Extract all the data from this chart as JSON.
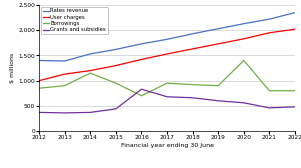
{
  "years": [
    2012,
    2013,
    2014,
    2015,
    2016,
    2017,
    2018,
    2019,
    2020,
    2021,
    2022
  ],
  "rates_revenue": [
    1400,
    1390,
    1530,
    1620,
    1730,
    1820,
    1930,
    2030,
    2130,
    2220,
    2350
  ],
  "user_charges": [
    1000,
    1130,
    1200,
    1300,
    1420,
    1530,
    1630,
    1730,
    1830,
    1950,
    2020
  ],
  "borrowings": [
    850,
    900,
    1150,
    950,
    700,
    950,
    920,
    900,
    1400,
    800,
    800
  ],
  "grants": [
    370,
    360,
    370,
    440,
    830,
    680,
    660,
    600,
    560,
    460,
    480
  ],
  "series_colors": {
    "rates_revenue": "#4472C4",
    "user_charges": "#FF0000",
    "borrowings": "#70AD47",
    "grants": "#7030A0"
  },
  "legend_labels": [
    "Rates revenue",
    "User charges",
    "Borrowings",
    "Grants and subsidies"
  ],
  "xlabel": "Financial year ending 30 June",
  "ylabel": "$ millions",
  "ylim": [
    0,
    2500
  ],
  "yticks": [
    0,
    500,
    1000,
    1500,
    2000,
    2500
  ],
  "bg_color": "#FFFFFF",
  "grid_color": "#CCCCCC"
}
